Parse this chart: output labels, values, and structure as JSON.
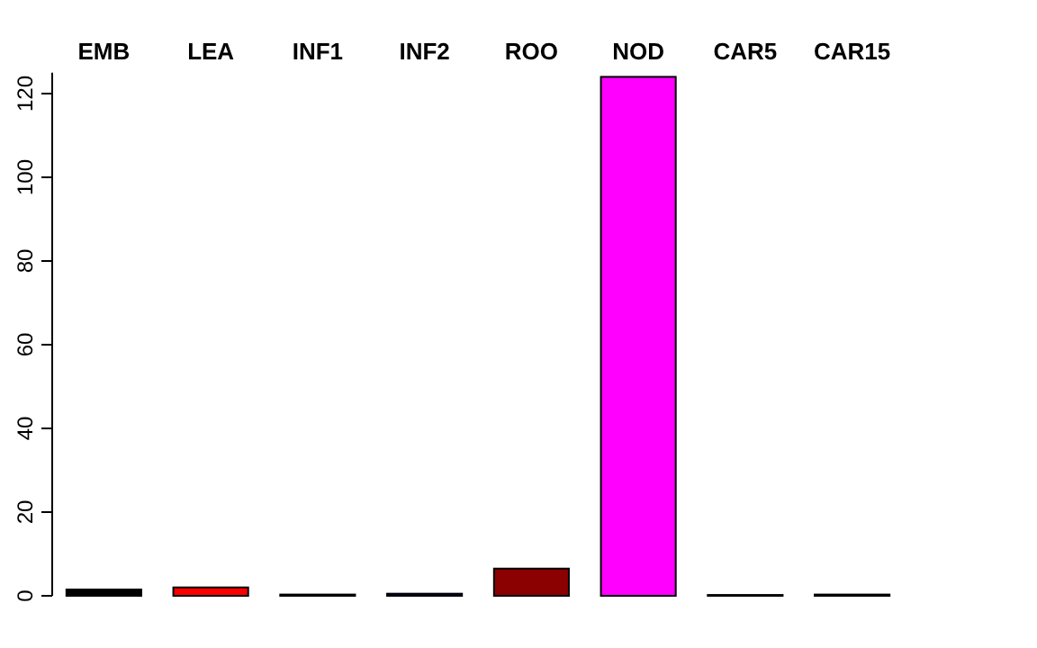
{
  "chart_data": {
    "type": "bar",
    "categories": [
      "EMB",
      "LEA",
      "INF1",
      "INF2",
      "ROO",
      "NOD",
      "CAR5",
      "CAR15"
    ],
    "values": [
      1.5,
      2,
      0.3,
      0.5,
      6.5,
      124,
      0.2,
      0.3
    ],
    "colors": [
      "#000000",
      "#ff0000",
      "#000000",
      "#00008b",
      "#8b0000",
      "#ff00ff",
      "#000000",
      "#000000"
    ],
    "ylim": [
      0,
      125
    ],
    "yticks": [
      0,
      20,
      40,
      60,
      80,
      100,
      120
    ]
  }
}
